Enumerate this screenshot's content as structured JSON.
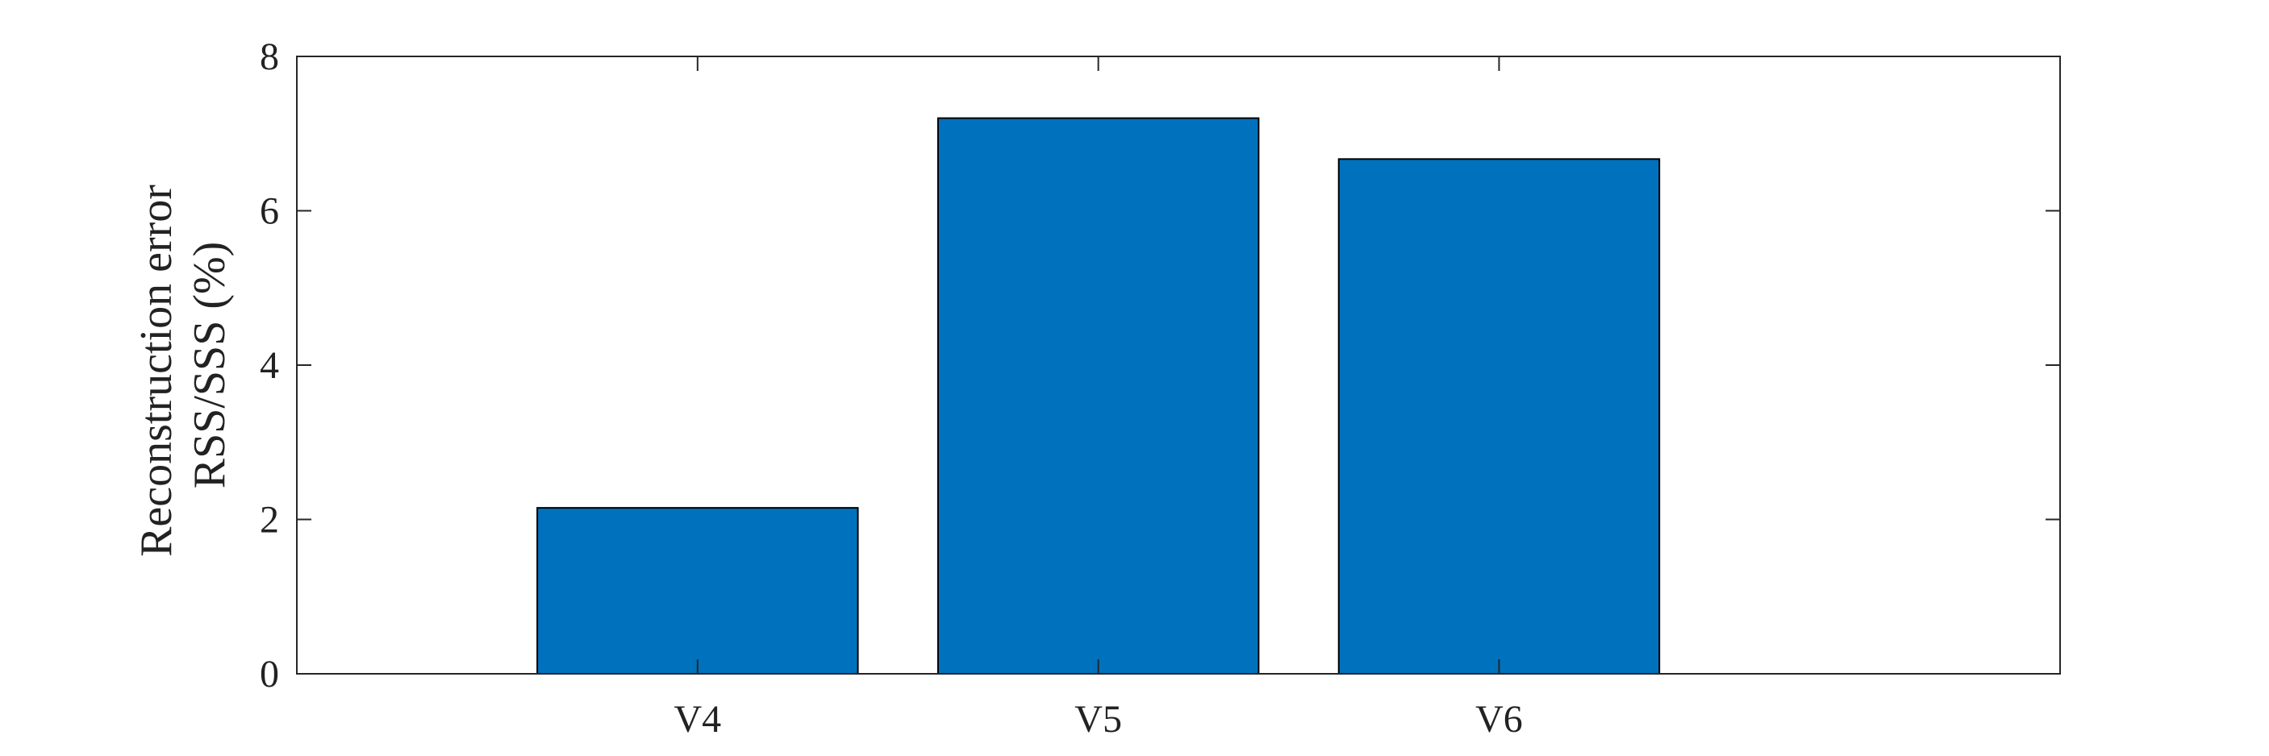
{
  "chart_data": {
    "type": "bar",
    "categories": [
      "V4",
      "V5",
      "V6"
    ],
    "values": [
      2.15,
      7.2,
      6.67
    ],
    "title": "",
    "xlabel": "",
    "ylabel_lines": [
      "Reconstruction error",
      "RSS/SSS (%)"
    ],
    "ylim": [
      0,
      8
    ],
    "yticks": [
      0,
      2,
      4,
      6,
      8
    ],
    "xlim": [
      0.2,
      4.6
    ],
    "category_positions": [
      1.2,
      2.2,
      3.2
    ],
    "bar_width": 0.8,
    "grid": false,
    "bar_color": "#0072bd",
    "edge_color": "#000000"
  }
}
